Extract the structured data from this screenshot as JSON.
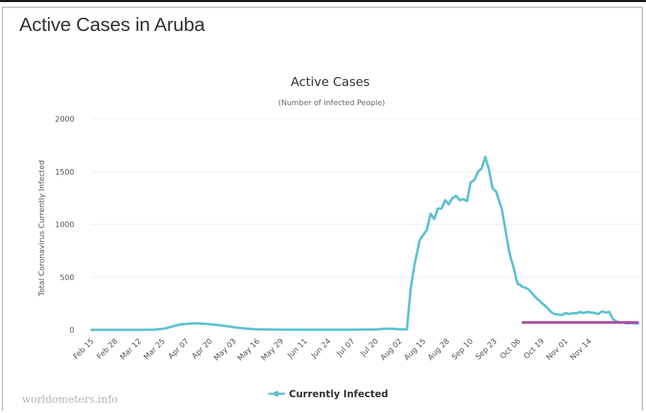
{
  "page": {
    "title": "Active Cases in Aruba",
    "watermark": "worldometers.info"
  },
  "colors": {
    "series": "#5cc1d3",
    "annotation": "#a8519a",
    "grid": "#ececec",
    "text": "#333333"
  },
  "chart_data": {
    "type": "line",
    "title": "Active Cases",
    "subtitle": "(Number of Infected People)",
    "ylabel": "Total Coronavirus Currently Infected",
    "xlabel": "",
    "ylim": [
      0,
      2000
    ],
    "yticks": [
      0,
      500,
      1000,
      1500,
      2000
    ],
    "categories": [
      "Feb 15",
      "Feb 28",
      "Mar 12",
      "Mar 25",
      "Apr 07",
      "Apr 20",
      "May 03",
      "May 16",
      "May 29",
      "Jun 11",
      "Jun 24",
      "Jul 07",
      "Jul 20",
      "Aug 02",
      "Aug 15",
      "Aug 28",
      "Sep 10",
      "Sep 23",
      "Oct 06",
      "Oct 19",
      "Nov 01",
      "Nov 14"
    ],
    "grid": true,
    "legend_position": "bottom-center",
    "series": [
      {
        "name": "Currently Infected",
        "x": [
          0,
          13,
          26,
          34,
          38,
          41,
          45,
          49,
          53,
          57,
          62,
          67,
          72,
          78,
          85,
          91,
          104,
          117,
          130,
          143,
          156,
          160,
          164,
          167,
          170,
          173,
          175,
          177,
          180,
          182,
          184,
          186,
          188,
          190,
          192,
          194,
          196,
          198,
          200,
          202,
          204,
          206,
          208,
          210,
          212,
          214,
          216,
          218,
          220,
          222,
          224,
          225,
          226,
          227,
          228,
          229,
          230,
          231,
          232,
          233,
          234,
          235,
          236,
          238,
          240,
          242,
          244,
          246,
          248,
          250,
          252,
          254,
          256,
          258,
          260,
          262,
          264,
          266,
          268,
          270,
          272,
          274,
          276,
          278,
          280,
          282,
          284,
          286,
          288,
          290,
          292,
          294,
          296,
          298,
          300
        ],
        "values": [
          0,
          0,
          0,
          2,
          8,
          15,
          35,
          52,
          58,
          62,
          58,
          50,
          40,
          25,
          12,
          5,
          2,
          1,
          1,
          2,
          4,
          10,
          12,
          8,
          5,
          5,
          380,
          600,
          850,
          900,
          950,
          1100,
          1050,
          1150,
          1150,
          1230,
          1190,
          1250,
          1270,
          1230,
          1240,
          1220,
          1400,
          1420,
          1500,
          1530,
          1640,
          1520,
          1340,
          1310,
          1200,
          1150,
          1050,
          950,
          850,
          750,
          680,
          620,
          560,
          480,
          430,
          430,
          410,
          400,
          380,
          340,
          300,
          270,
          240,
          210,
          170,
          150,
          145,
          140,
          160,
          150,
          160,
          155,
          170,
          160,
          170,
          165,
          160,
          150,
          175,
          165,
          170,
          100,
          80,
          70,
          70,
          60,
          65,
          60,
          62
        ]
      }
    ],
    "annotations": [
      {
        "type": "hline",
        "y": 70,
        "x_start": 236,
        "x_end": 300
      }
    ]
  }
}
